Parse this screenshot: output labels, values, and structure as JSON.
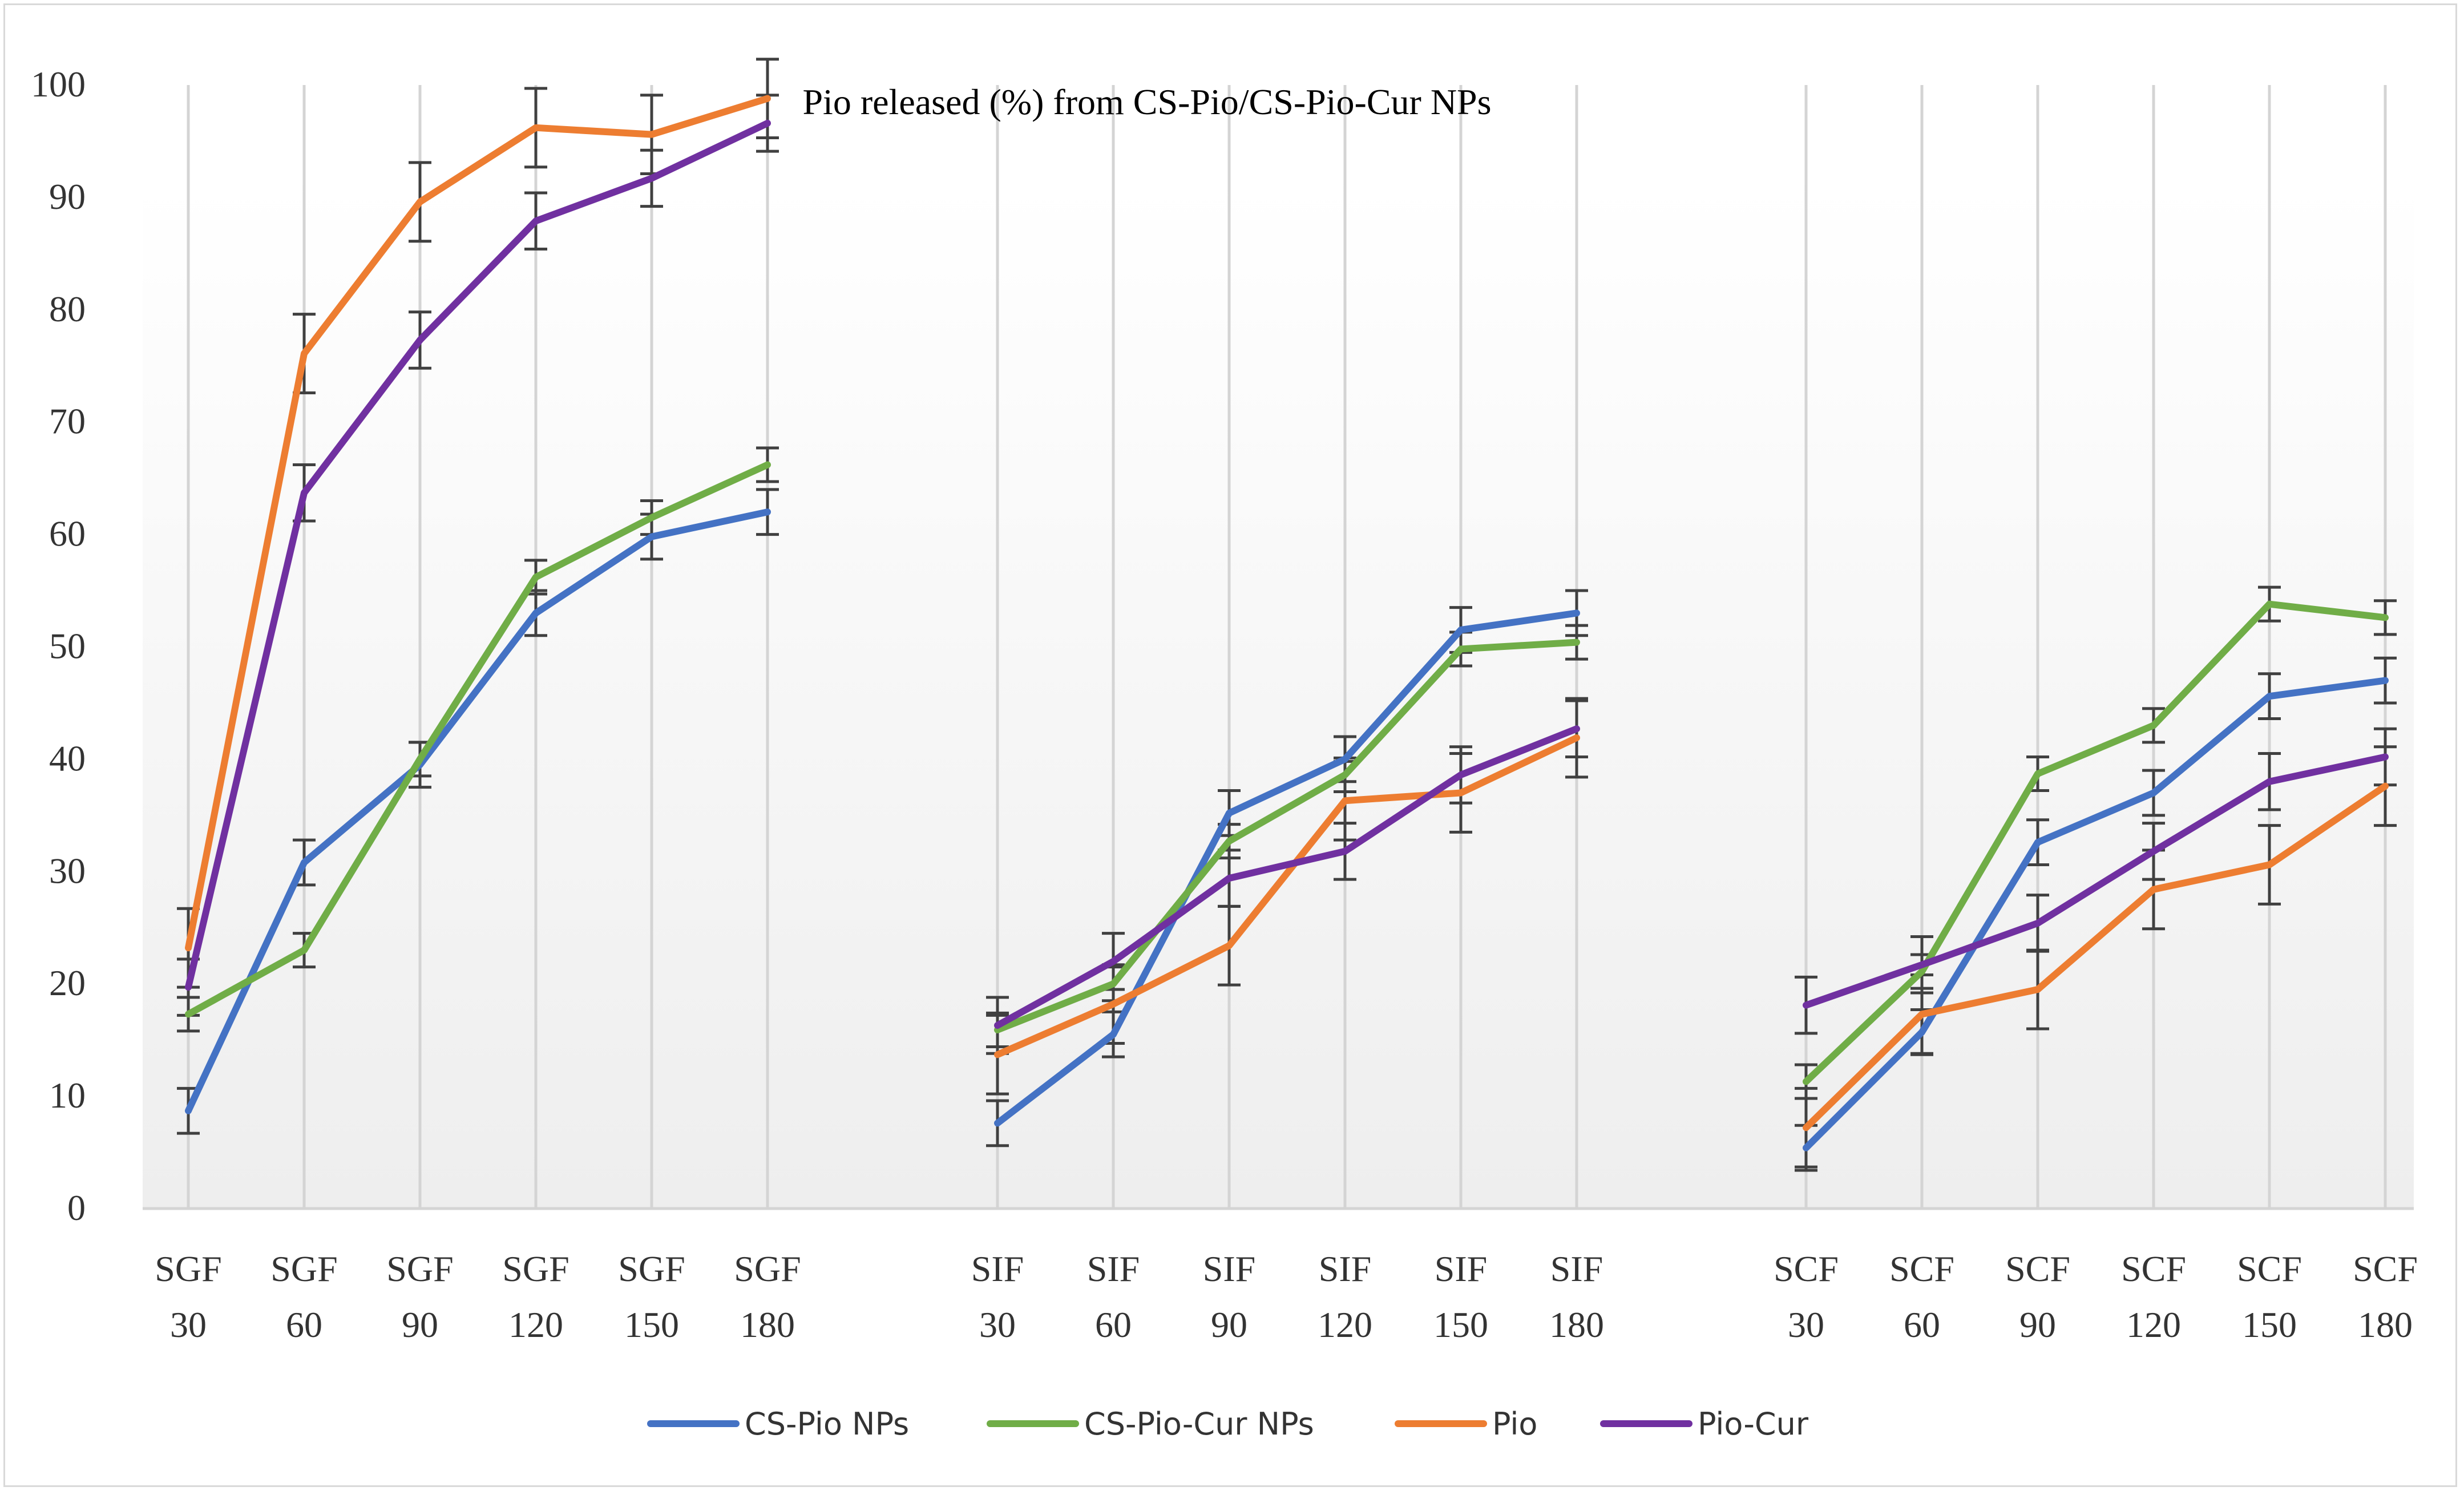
{
  "chart_data": {
    "type": "line",
    "title": "Pio released (%) from CS-Pio/CS-Pio-Cur NPs",
    "xlabel": "",
    "ylabel": "",
    "ylim": [
      0,
      100
    ],
    "yticks": [
      "0",
      "10",
      "20",
      "30",
      "40",
      "50",
      "60",
      "70",
      "80",
      "90",
      "100"
    ],
    "groups": [
      {
        "name": "SGF",
        "times": [
          "30",
          "60",
          "90",
          "120",
          "150",
          "180"
        ]
      },
      {
        "name": "SIF",
        "times": [
          "30",
          "60",
          "90",
          "120",
          "150",
          "180"
        ]
      },
      {
        "name": "SCF",
        "times": [
          "30",
          "60",
          "90",
          "120",
          "150",
          "180"
        ]
      }
    ],
    "series": [
      {
        "name": "CS-Pio NPs",
        "color": "#4472c4",
        "groups": [
          {
            "values": [
              8.7,
              30.8,
              39.5,
              53.0,
              59.8,
              62.0
            ],
            "errors": [
              2.0,
              2.0,
              2.0,
              2.0,
              2.0,
              2.0
            ]
          },
          {
            "values": [
              7.6,
              15.5,
              35.2,
              40.0,
              51.5,
              53.0
            ],
            "errors": [
              2.0,
              2.0,
              2.0,
              2.0,
              2.0,
              2.0
            ]
          },
          {
            "values": [
              5.4,
              15.7,
              32.6,
              37.0,
              45.6,
              47.0
            ],
            "errors": [
              2.0,
              2.0,
              2.0,
              2.0,
              2.0,
              2.0
            ]
          }
        ]
      },
      {
        "name": "CS-Pio-Cur NPs",
        "color": "#70ad47",
        "groups": [
          {
            "values": [
              17.3,
              23.0,
              40.0,
              56.2,
              61.5,
              66.2
            ],
            "errors": [
              1.5,
              1.5,
              1.5,
              1.5,
              1.5,
              1.5
            ]
          },
          {
            "values": [
              15.9,
              20.0,
              32.7,
              38.6,
              49.8,
              50.4
            ],
            "errors": [
              1.5,
              1.5,
              1.5,
              1.5,
              1.5,
              1.5
            ]
          },
          {
            "values": [
              11.3,
              21.1,
              38.7,
              43.0,
              53.8,
              52.6
            ],
            "errors": [
              1.5,
              1.5,
              1.5,
              1.5,
              1.5,
              1.5
            ]
          }
        ]
      },
      {
        "name": "Pio",
        "color": "#ed7d31",
        "groups": [
          {
            "values": [
              23.2,
              76.1,
              89.6,
              96.2,
              95.6,
              98.8
            ],
            "errors": [
              3.5,
              3.5,
              3.5,
              3.5,
              3.5,
              3.5
            ]
          },
          {
            "values": [
              13.7,
              18.2,
              23.4,
              36.3,
              37.0,
              41.9
            ],
            "errors": [
              3.5,
              3.5,
              3.5,
              3.5,
              3.5,
              3.5
            ]
          },
          {
            "values": [
              7.2,
              17.3,
              19.5,
              28.4,
              30.6,
              37.6
            ],
            "errors": [
              3.5,
              3.5,
              3.5,
              3.5,
              3.5,
              3.5
            ]
          }
        ]
      },
      {
        "name": "Pio-Cur",
        "color": "#7030a0",
        "groups": [
          {
            "values": [
              19.7,
              63.7,
              77.3,
              87.9,
              91.7,
              96.6
            ],
            "errors": [
              2.5,
              2.5,
              2.5,
              2.5,
              2.5,
              2.5
            ]
          },
          {
            "values": [
              16.3,
              22.0,
              29.4,
              31.8,
              38.6,
              42.7
            ],
            "errors": [
              2.5,
              2.5,
              2.5,
              2.5,
              2.5,
              2.5
            ]
          },
          {
            "values": [
              18.1,
              21.7,
              25.4,
              31.8,
              38.0,
              40.2
            ],
            "errors": [
              2.5,
              2.5,
              2.5,
              2.5,
              2.5,
              2.5
            ]
          }
        ]
      }
    ],
    "legend": [
      "CS-Pio NPs",
      "CS-Pio-Cur NPs",
      "Pio",
      "Pio-Cur"
    ],
    "legend_position": "bottom",
    "grid": "vertical"
  }
}
